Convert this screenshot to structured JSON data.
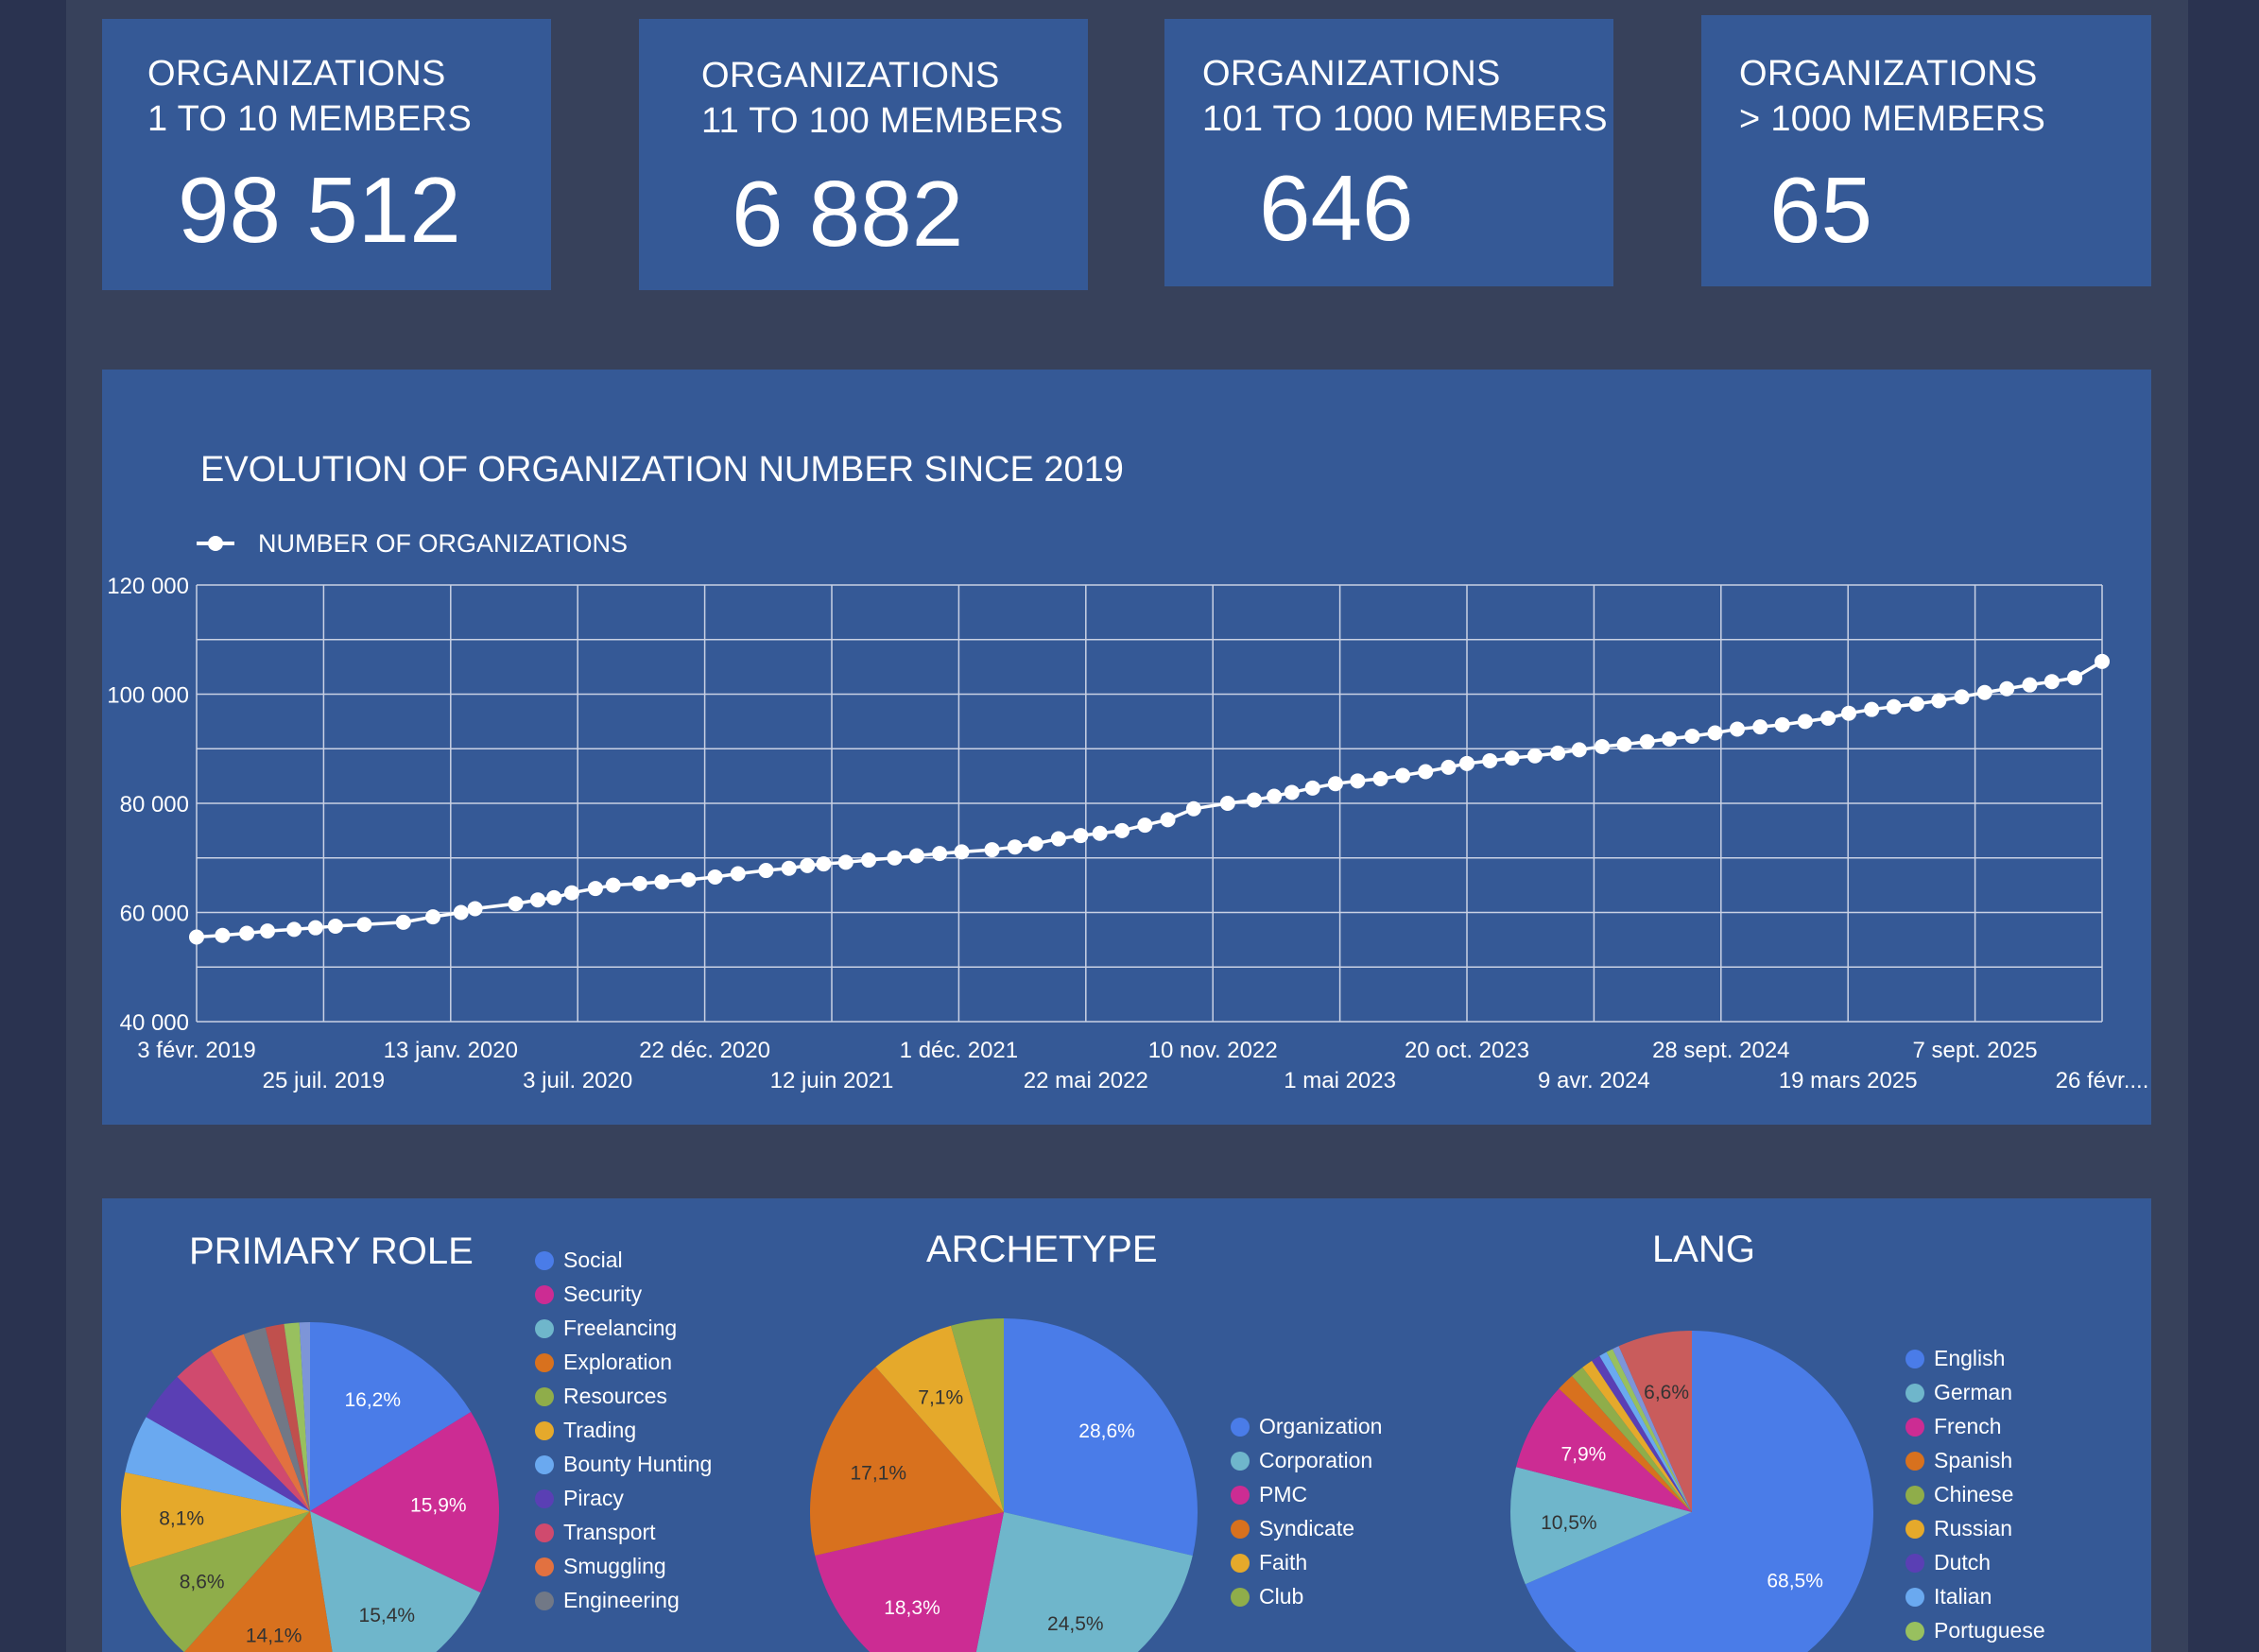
{
  "kpis": [
    {
      "title_line1": "ORGANIZATIONS",
      "title_line2": "1 TO 10 MEMBERS",
      "value": "98 512"
    },
    {
      "title_line1": "ORGANIZATIONS",
      "title_line2": "11 TO 100 MEMBERS",
      "value": "6 882"
    },
    {
      "title_line1": "ORGANIZATIONS",
      "title_line2": "101 TO 1000 MEMBERS",
      "value": "646"
    },
    {
      "title_line1": "ORGANIZATIONS",
      "title_line2": "> 1000 MEMBERS",
      "value": "65"
    }
  ],
  "colors": {
    "background": "#2a3350",
    "page": "#37415b",
    "card": "#355996",
    "grid": "#c9d1e4",
    "line": "#ffffff"
  },
  "chart_data": [
    {
      "type": "line",
      "title": "EVOLUTION OF ORGANIZATION NUMBER SINCE 2019",
      "legend": "top-left",
      "grid": true,
      "series": [
        {
          "name": "NUMBER OF ORGANIZATIONS"
        }
      ],
      "ylim": [
        40000,
        120000
      ],
      "y_ticks": [
        "40 000",
        "60 000",
        "80 000",
        "100 000",
        "120 000"
      ],
      "x_ticks_row1": [
        "3 févr. 2019",
        "13 janv. 2020",
        "22 déc. 2020",
        "1 déc. 2021",
        "10 nov. 2022",
        "20 oct. 2023",
        "28 sept. 2024",
        "7 sept. 2025"
      ],
      "x_ticks_row2": [
        "25 juil. 2019",
        "3 juil. 2020",
        "12 juin 2021",
        "22 mai 2022",
        "1 mai 2023",
        "9 avr. 2024",
        "19 mars 2025",
        "26 févr...."
      ],
      "x_range": [
        "2019-02-03",
        "2026-02-26"
      ],
      "points": [
        [
          "2019-02-03",
          55500
        ],
        [
          "2019-03-10",
          55800
        ],
        [
          "2019-04-12",
          56200
        ],
        [
          "2019-05-10",
          56600
        ],
        [
          "2019-06-15",
          56900
        ],
        [
          "2019-07-14",
          57200
        ],
        [
          "2019-08-10",
          57500
        ],
        [
          "2019-09-18",
          57800
        ],
        [
          "2019-11-10",
          58200
        ],
        [
          "2019-12-20",
          59200
        ],
        [
          "2020-01-27",
          60000
        ],
        [
          "2020-02-15",
          60700
        ],
        [
          "2020-04-10",
          61600
        ],
        [
          "2020-05-10",
          62300
        ],
        [
          "2020-06-01",
          62700
        ],
        [
          "2020-06-25",
          63600
        ],
        [
          "2020-07-27",
          64400
        ],
        [
          "2020-08-20",
          65000
        ],
        [
          "2020-09-25",
          65300
        ],
        [
          "2020-10-25",
          65600
        ],
        [
          "2020-11-30",
          66000
        ],
        [
          "2021-01-05",
          66500
        ],
        [
          "2021-02-05",
          67100
        ],
        [
          "2021-03-15",
          67700
        ],
        [
          "2021-04-15",
          68100
        ],
        [
          "2021-05-10",
          68600
        ],
        [
          "2021-06-01",
          68900
        ],
        [
          "2021-07-01",
          69200
        ],
        [
          "2021-08-01",
          69600
        ],
        [
          "2021-09-05",
          70000
        ],
        [
          "2021-10-05",
          70400
        ],
        [
          "2021-11-05",
          70800
        ],
        [
          "2021-12-05",
          71100
        ],
        [
          "2022-01-15",
          71500
        ],
        [
          "2022-02-15",
          72000
        ],
        [
          "2022-03-15",
          72600
        ],
        [
          "2022-04-15",
          73500
        ],
        [
          "2022-05-15",
          74100
        ],
        [
          "2022-06-10",
          74500
        ],
        [
          "2022-07-10",
          75000
        ],
        [
          "2022-08-10",
          76000
        ],
        [
          "2022-09-10",
          77000
        ],
        [
          "2022-10-15",
          79000
        ],
        [
          "2022-11-30",
          80000
        ],
        [
          "2023-01-05",
          80600
        ],
        [
          "2023-02-01",
          81300
        ],
        [
          "2023-02-25",
          82000
        ],
        [
          "2023-03-25",
          82800
        ],
        [
          "2023-04-25",
          83600
        ],
        [
          "2023-05-25",
          84100
        ],
        [
          "2023-06-25",
          84500
        ],
        [
          "2023-07-25",
          85100
        ],
        [
          "2023-08-25",
          85800
        ],
        [
          "2023-09-25",
          86600
        ],
        [
          "2023-10-20",
          87300
        ],
        [
          "2023-11-20",
          87800
        ],
        [
          "2023-12-20",
          88300
        ],
        [
          "2024-01-20",
          88700
        ],
        [
          "2024-02-20",
          89200
        ],
        [
          "2024-03-20",
          89800
        ],
        [
          "2024-04-20",
          90400
        ],
        [
          "2024-05-20",
          90800
        ],
        [
          "2024-06-20",
          91300
        ],
        [
          "2024-07-20",
          91800
        ],
        [
          "2024-08-20",
          92300
        ],
        [
          "2024-09-20",
          92900
        ],
        [
          "2024-10-20",
          93600
        ],
        [
          "2024-11-20",
          94000
        ],
        [
          "2024-12-20",
          94400
        ],
        [
          "2025-01-20",
          95000
        ],
        [
          "2025-02-20",
          95600
        ],
        [
          "2025-03-20",
          96500
        ],
        [
          "2025-04-20",
          97200
        ],
        [
          "2025-05-20",
          97700
        ],
        [
          "2025-06-20",
          98200
        ],
        [
          "2025-07-20",
          98800
        ],
        [
          "2025-08-20",
          99500
        ],
        [
          "2025-09-20",
          100300
        ],
        [
          "2025-10-20",
          101000
        ],
        [
          "2025-11-20",
          101700
        ],
        [
          "2025-12-20",
          102300
        ],
        [
          "2026-01-20",
          103000
        ],
        [
          "2026-02-26",
          106000
        ]
      ]
    },
    {
      "type": "pie",
      "title": "PRIMARY ROLE",
      "legend": "right",
      "slices": [
        {
          "label": "Social",
          "value": 16.2,
          "color": "#4a7ce8",
          "text": "16,2%"
        },
        {
          "label": "Security",
          "value": 15.9,
          "color": "#cc2c93",
          "text": "15,9%"
        },
        {
          "label": "Freelancing",
          "value": 15.4,
          "color": "#6fb6cb",
          "text": "15,4%"
        },
        {
          "label": "Exploration",
          "value": 14.1,
          "color": "#d8711e",
          "text": "14,1%"
        },
        {
          "label": "Resources",
          "value": 8.6,
          "color": "#8fad4a",
          "text": "8,6%"
        },
        {
          "label": "Trading",
          "value": 8.1,
          "color": "#e5a92b",
          "text": "8,1%"
        },
        {
          "label": "Bounty Hunting",
          "value": 5.0,
          "color": "#6aa9f0",
          "text": ""
        },
        {
          "label": "Piracy",
          "value": 4.3,
          "color": "#5a3fb4",
          "text": ""
        },
        {
          "label": "Transport",
          "value": 3.6,
          "color": "#d04a6e",
          "text": ""
        },
        {
          "label": "Smuggling",
          "value": 3.1,
          "color": "#e27140",
          "text": ""
        },
        {
          "label": "Engineering",
          "value": 1.9,
          "color": "#717886",
          "text": ""
        },
        {
          "label": "",
          "value": 1.6,
          "color": "#c0504d",
          "text": ""
        },
        {
          "label": "",
          "value": 1.3,
          "color": "#98c05f",
          "text": ""
        },
        {
          "label": "",
          "value": 0.9,
          "color": "#7d95d8",
          "text": ""
        }
      ]
    },
    {
      "type": "pie",
      "title": "ARCHETYPE",
      "legend": "right",
      "slices": [
        {
          "label": "Organization",
          "value": 28.6,
          "color": "#4a7ce8",
          "text": "28,6%"
        },
        {
          "label": "Corporation",
          "value": 24.5,
          "color": "#6fb6cb",
          "text": "24,5%"
        },
        {
          "label": "PMC",
          "value": 18.3,
          "color": "#cc2c93",
          "text": "18,3%"
        },
        {
          "label": "Syndicate",
          "value": 17.1,
          "color": "#d8711e",
          "text": "17,1%"
        },
        {
          "label": "Faith",
          "value": 7.1,
          "color": "#e5a92b",
          "text": "7,1%"
        },
        {
          "label": "Club",
          "value": 4.4,
          "color": "#8fad4a",
          "text": ""
        }
      ]
    },
    {
      "type": "pie",
      "title": "LANG",
      "legend": "right",
      "slices": [
        {
          "label": "English",
          "value": 68.5,
          "color": "#4a7ce8",
          "text": "68,5%"
        },
        {
          "label": "German",
          "value": 10.5,
          "color": "#6fb6cb",
          "text": "10,5%"
        },
        {
          "label": "French",
          "value": 7.9,
          "color": "#cc2c93",
          "text": "7,9%"
        },
        {
          "label": "Spanish",
          "value": 1.6,
          "color": "#d8711e",
          "text": ""
        },
        {
          "label": "Chinese",
          "value": 1.2,
          "color": "#8fad4a",
          "text": ""
        },
        {
          "label": "Russian",
          "value": 1.0,
          "color": "#e5a92b",
          "text": ""
        },
        {
          "label": "Dutch",
          "value": 0.8,
          "color": "#5a3fb4",
          "text": ""
        },
        {
          "label": "Italian",
          "value": 0.7,
          "color": "#6aa9f0",
          "text": ""
        },
        {
          "label": "Portuguese",
          "value": 0.6,
          "color": "#98c05f",
          "text": ""
        },
        {
          "label": "",
          "value": 0.6,
          "color": "#7d95d8",
          "text": ""
        },
        {
          "label": "",
          "value": 6.6,
          "color": "#c95c5c",
          "text": "6,6%"
        }
      ]
    }
  ]
}
